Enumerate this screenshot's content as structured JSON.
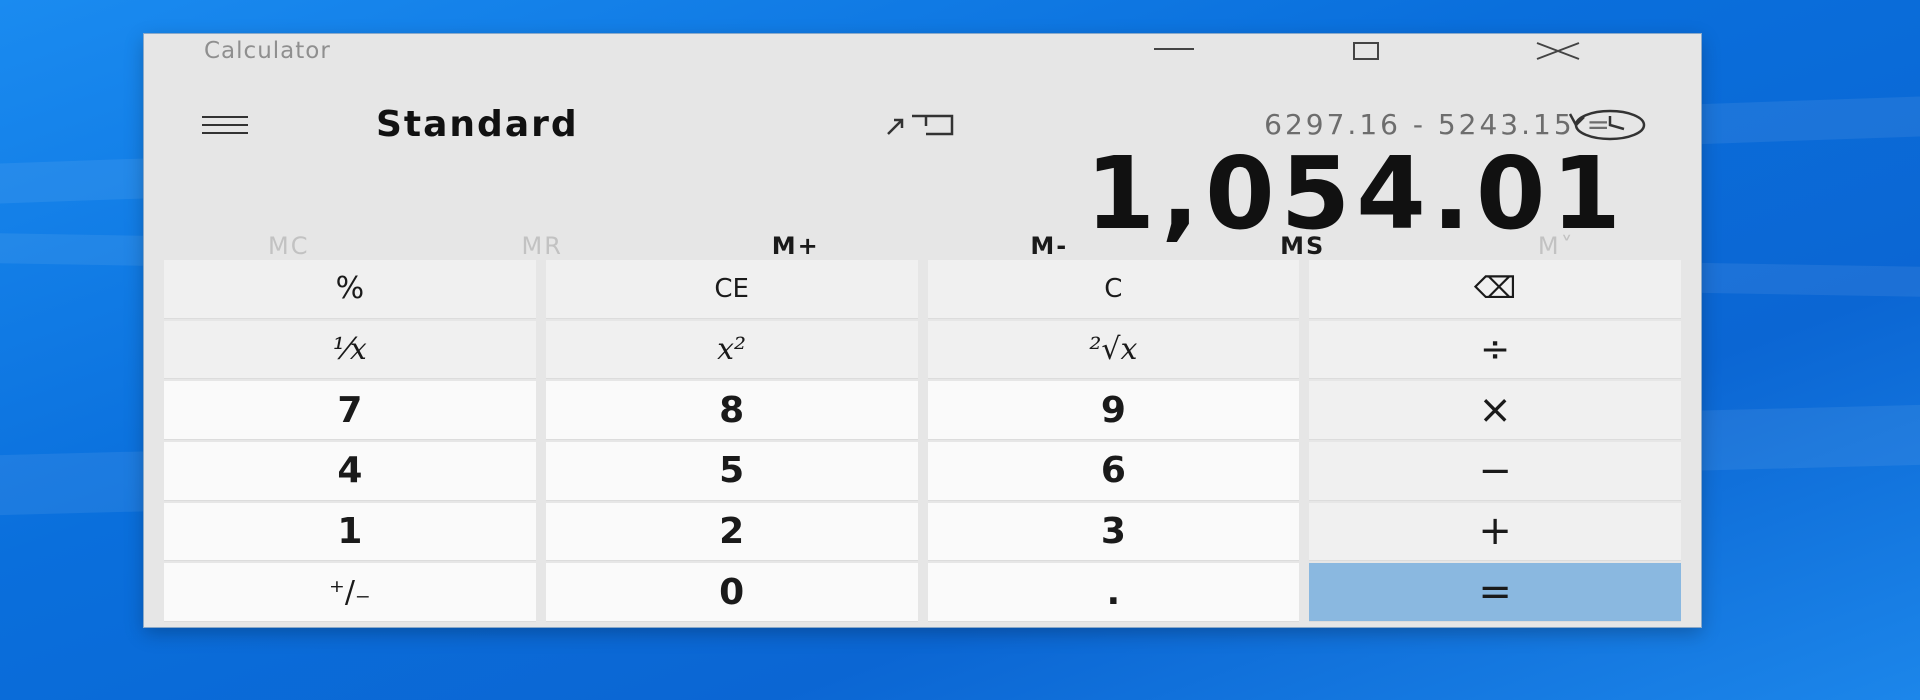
{
  "window": {
    "title": "Calculator",
    "controls": {
      "minimize": "minimize",
      "maximize": "maximize",
      "close": "close"
    }
  },
  "header": {
    "mode": "Standard",
    "icons": {
      "menu": "hamburger-menu-icon",
      "keep_on_top": "keep-on-top-icon",
      "history": "history-icon"
    }
  },
  "display": {
    "expression": "6297.16 - 5243.15 =",
    "result": "1,054.01"
  },
  "memory": [
    {
      "label": "MC",
      "enabled": false
    },
    {
      "label": "MR",
      "enabled": false
    },
    {
      "label": "M+",
      "enabled": true
    },
    {
      "label": "M-",
      "enabled": true
    },
    {
      "label": "MS",
      "enabled": true
    },
    {
      "label": "M˅",
      "enabled": false
    }
  ],
  "keys": {
    "percent": "%",
    "clear_entry": "CE",
    "clear": "C",
    "backspace": "⌫",
    "reciprocal": "⅟x",
    "square": "x²",
    "sqrt": "²√x",
    "divide": "÷",
    "seven": "7",
    "eight": "8",
    "nine": "9",
    "multiply": "×",
    "four": "4",
    "five": "5",
    "six": "6",
    "subtract": "−",
    "one": "1",
    "two": "2",
    "three": "3",
    "add": "+",
    "negate": "⁺/₋",
    "zero": "0",
    "decimal": ".",
    "equals": "="
  },
  "colors": {
    "window_bg": "#e6e6e6",
    "operator_key_bg": "#f0f0f0",
    "number_key_bg": "#fafafa",
    "equals_key_bg": "#8ab8e0",
    "desktop_bg": "#0a6fdc"
  }
}
